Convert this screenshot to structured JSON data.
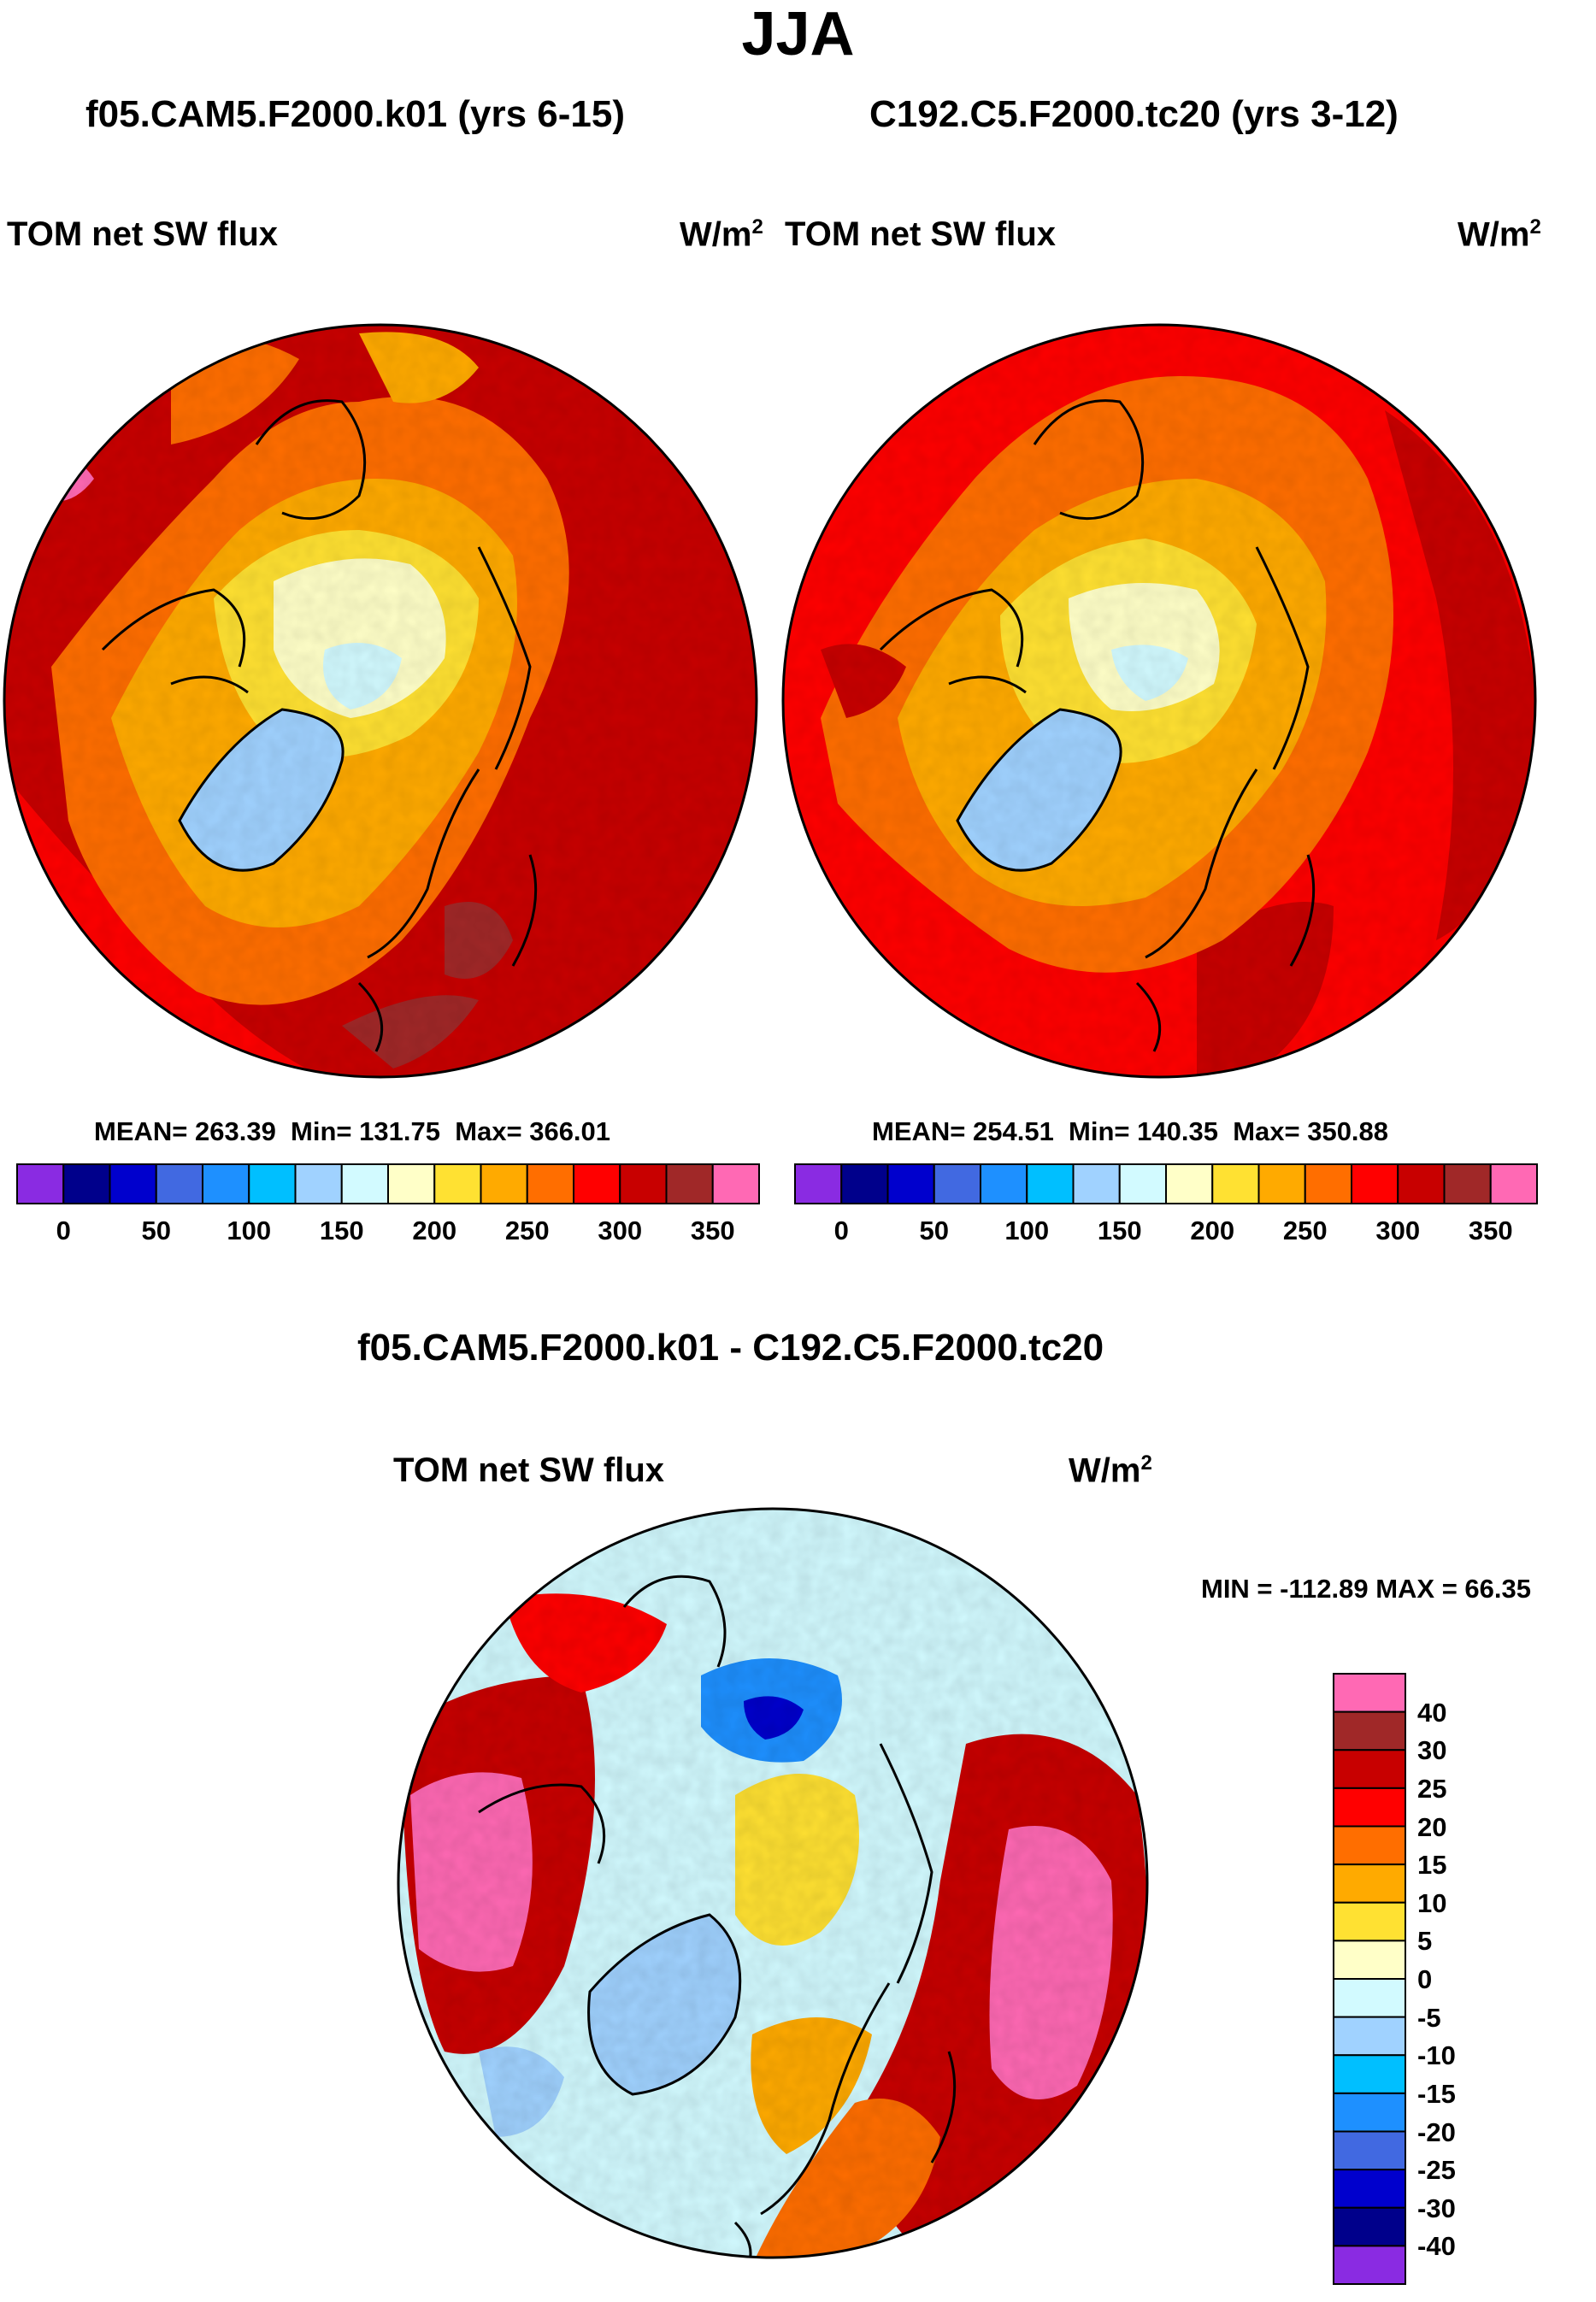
{
  "season": "JJA",
  "panels": [
    {
      "title": "f05.CAM5.F2000.k01 (yrs 6-15)",
      "variable": "TOM net SW flux",
      "units_base": "W/m",
      "units_exp": "2",
      "mean_label": "MEAN= 263.39",
      "min_label": "Min= 131.75",
      "max_label": "Max= 366.01"
    },
    {
      "title": "C192.C5.F2000.tc20 (yrs 3-12)",
      "variable": "TOM net SW flux",
      "units_base": "W/m",
      "units_exp": "2",
      "mean_label": "MEAN= 254.51",
      "min_label": "Min= 140.35",
      "max_label": "Max= 350.88"
    }
  ],
  "diff_panel": {
    "title": "f05.CAM5.F2000.k01 - C192.C5.F2000.tc20",
    "variable": "TOM net SW flux",
    "units_base": "W/m",
    "units_exp": "2",
    "minmax_label": "MIN = -112.89 MAX =  66.35"
  },
  "colorbar_main": {
    "ticks": [
      "0",
      "50",
      "100",
      "150",
      "200",
      "250",
      "300",
      "350"
    ],
    "colors": [
      "#8a2be2",
      "#00008b",
      "#0000cd",
      "#4169e1",
      "#1e90ff",
      "#00bfff",
      "#a0d2ff",
      "#d2faff",
      "#ffffc8",
      "#ffe132",
      "#ffaa00",
      "#ff6e00",
      "#ff0000",
      "#c80000",
      "#a02828",
      "#ff69b4"
    ]
  },
  "colorbar_diff": {
    "ticks": [
      "40",
      "30",
      "25",
      "20",
      "15",
      "10",
      "5",
      "0",
      "-5",
      "-10",
      "-15",
      "-20",
      "-25",
      "-30",
      "-40"
    ],
    "colors_top_to_bottom": [
      "#ff69b4",
      "#a02828",
      "#c80000",
      "#ff0000",
      "#ff6e00",
      "#ffaa00",
      "#ffe132",
      "#ffffc8",
      "#d2faff",
      "#a0d2ff",
      "#00bfff",
      "#1e90ff",
      "#4169e1",
      "#0000cd",
      "#00008b",
      "#8a2be2"
    ]
  },
  "chart_data": [
    {
      "type": "heatmap",
      "title": "f05.CAM5.F2000.k01 (yrs 6-15)",
      "variable": "TOM net SW flux",
      "units": "W/m^2",
      "projection": "north polar stereographic",
      "levels": [
        0,
        25,
        50,
        75,
        100,
        125,
        150,
        175,
        200,
        225,
        250,
        275,
        300,
        325,
        350
      ],
      "mean": 263.39,
      "min": 131.75,
      "max": 366.01
    },
    {
      "type": "heatmap",
      "title": "C192.C5.F2000.tc20 (yrs 3-12)",
      "variable": "TOM net SW flux",
      "units": "W/m^2",
      "projection": "north polar stereographic",
      "levels": [
        0,
        25,
        50,
        75,
        100,
        125,
        150,
        175,
        200,
        225,
        250,
        275,
        300,
        325,
        350
      ],
      "mean": 254.51,
      "min": 140.35,
      "max": 350.88
    },
    {
      "type": "heatmap",
      "title": "f05.CAM5.F2000.k01 - C192.C5.F2000.tc20",
      "variable": "TOM net SW flux",
      "units": "W/m^2",
      "projection": "north polar stereographic",
      "levels": [
        -40,
        -30,
        -25,
        -20,
        -15,
        -10,
        -5,
        0,
        5,
        10,
        15,
        20,
        25,
        30,
        40
      ],
      "min": -112.89,
      "max": 66.35
    }
  ]
}
